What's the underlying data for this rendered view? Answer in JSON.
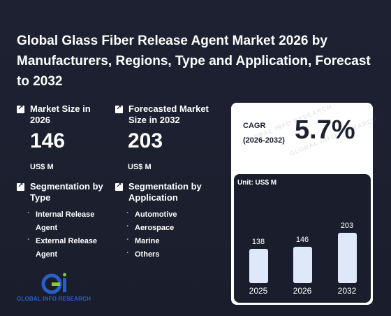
{
  "title": "Global Glass Fiber Release Agent Market 2026 by Manufacturers, Regions, Type and Application, Forecast to 2032",
  "market_size": {
    "label": "Market Size in 2026",
    "value": "146",
    "unit": "US$ M"
  },
  "forecast_size": {
    "label": "Forecasted Market Size in 2032",
    "value": "203",
    "unit": "US$ M"
  },
  "segmentation_type": {
    "label": "Segmentation by Type",
    "items": [
      "Internal Release Agent",
      "External Release Agent"
    ]
  },
  "segmentation_application": {
    "label": "Segmentation by Application",
    "items": [
      "Automotive",
      "Aerospace",
      "Marine",
      "Others"
    ]
  },
  "cagr": {
    "label_line1": "CAGR",
    "label_line2": "(2026-2032)",
    "value": "5.7%"
  },
  "watermark_text": "GLOBAL INFO RESEARCH",
  "logo": {
    "text": "GLOBAL INFO RESEARCH",
    "colors": {
      "blue": "#2a5fc8",
      "green": "#8dc63f"
    }
  },
  "chart_data": {
    "type": "bar",
    "unit_label": "Unit: US$ M",
    "categories": [
      "2025",
      "2026",
      "2032"
    ],
    "values": [
      138,
      146,
      203
    ],
    "color": "#dfe8fb"
  },
  "colors": {
    "background": "#1c2030",
    "card": "#ffffff",
    "bar": "#dfe8fb"
  }
}
